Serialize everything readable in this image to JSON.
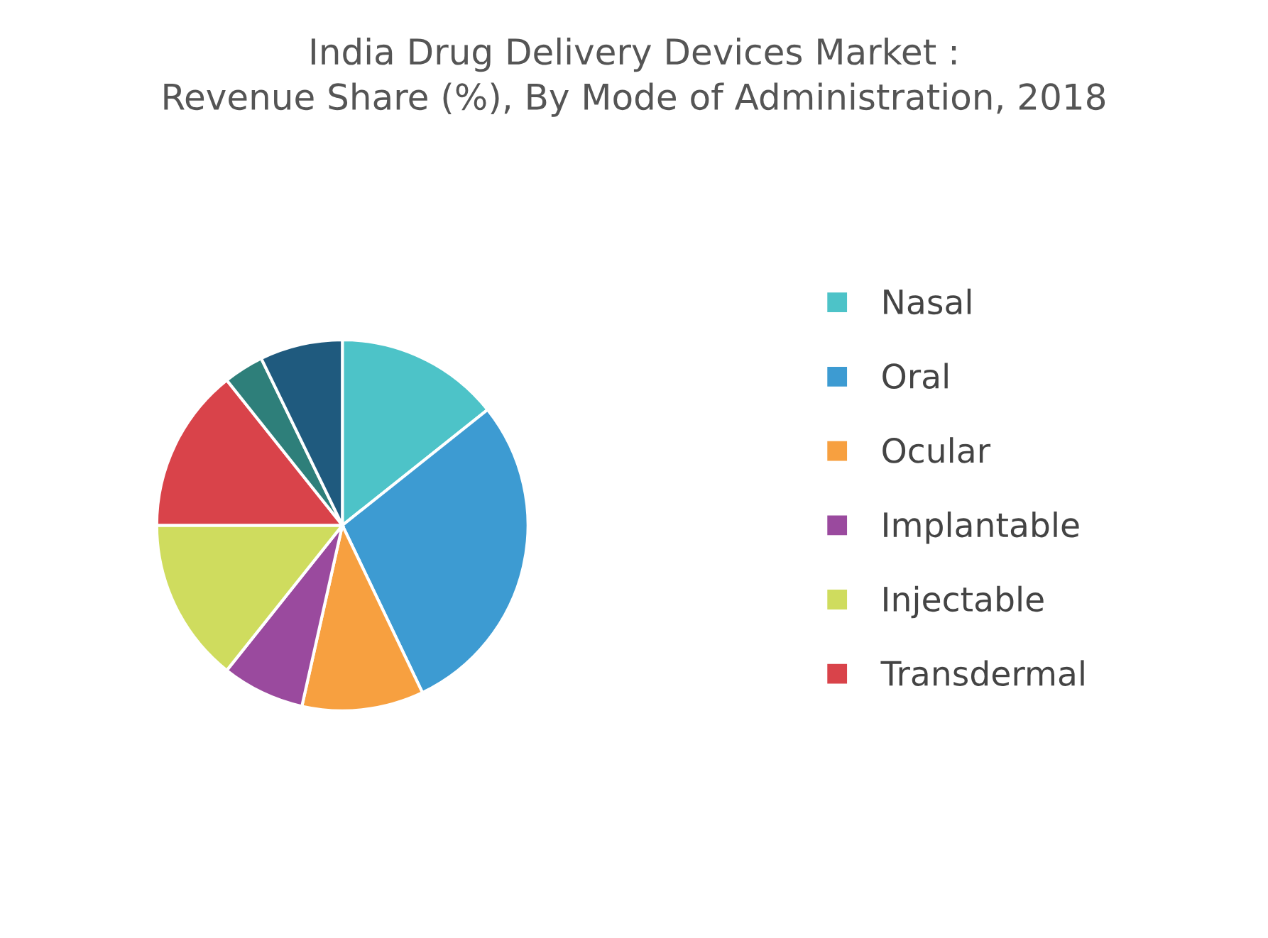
{
  "chart_data": {
    "type": "pie",
    "title": "India Drug Delivery Devices Market :\nRevenue Share (%), By Mode of Administration, 2018",
    "categories": [
      "Nasal",
      "Oral",
      "Ocular",
      "Implantable",
      "Injectable",
      "Transdermal",
      null,
      null
    ],
    "values": [
      14.3,
      28.6,
      10.6,
      7.2,
      14.3,
      14.3,
      3.5,
      7.2
    ],
    "colors": [
      "#4dc3c8",
      "#3d9bd2",
      "#f7a040",
      "#9a4a9e",
      "#cfdc5e",
      "#d9434a",
      "#2e7f7a",
      "#1f5a7e"
    ],
    "legend": "right"
  }
}
